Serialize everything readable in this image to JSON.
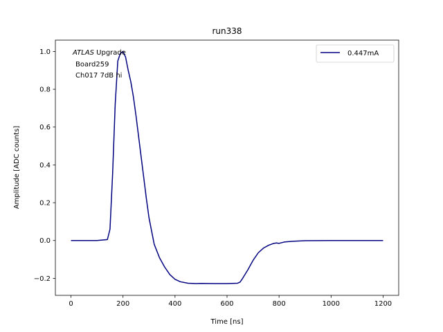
{
  "chart_data": {
    "type": "line",
    "title": "run338",
    "xlabel": "Time [ns]",
    "ylabel": "Amplitude [ADC counts]",
    "xlim": [
      -60,
      1260
    ],
    "ylim": [
      -0.29,
      1.06
    ],
    "xticks": [
      0,
      200,
      400,
      600,
      800,
      1000,
      1200
    ],
    "yticks": [
      -0.2,
      0.0,
      0.2,
      0.4,
      0.6,
      0.8,
      1.0
    ],
    "xtick_labels": [
      "0",
      "200",
      "400",
      "600",
      "800",
      "1000",
      "1200"
    ],
    "ytick_labels": [
      "−0.2",
      "0.0",
      "0.2",
      "0.4",
      "0.6",
      "0.8",
      "1.0"
    ],
    "grid": false,
    "legend_position": "upper right",
    "annotation": {
      "line1_italic": "ATLAS",
      "line1_rest": " Upgrade",
      "line2": "Board259",
      "line3": "Ch017 7dB hi"
    },
    "series": [
      {
        "name": "0.447mA",
        "color": "#000080",
        "x": [
          0,
          100,
          140,
          150,
          160,
          170,
          180,
          190,
          200,
          210,
          220,
          230,
          240,
          250,
          260,
          270,
          280,
          290,
          300,
          320,
          340,
          360,
          380,
          400,
          420,
          450,
          480,
          500,
          550,
          600,
          640,
          650,
          660,
          680,
          700,
          720,
          740,
          760,
          780,
          790,
          800,
          820,
          850,
          900,
          1000,
          1100,
          1200
        ],
        "y": [
          0.0,
          0.0,
          0.005,
          0.06,
          0.35,
          0.72,
          0.95,
          0.99,
          1.0,
          0.97,
          0.9,
          0.84,
          0.76,
          0.66,
          0.55,
          0.44,
          0.33,
          0.22,
          0.12,
          -0.02,
          -0.09,
          -0.14,
          -0.18,
          -0.205,
          -0.218,
          -0.226,
          -0.228,
          -0.227,
          -0.228,
          -0.228,
          -0.226,
          -0.22,
          -0.2,
          -0.155,
          -0.105,
          -0.065,
          -0.04,
          -0.025,
          -0.015,
          -0.013,
          -0.015,
          -0.008,
          -0.004,
          -0.001,
          0.0,
          0.0,
          0.0
        ]
      }
    ]
  }
}
